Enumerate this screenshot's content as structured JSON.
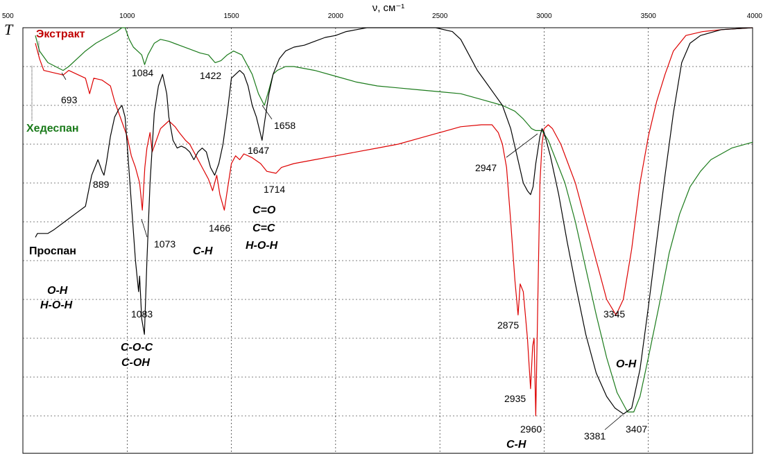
{
  "chart_data": {
    "type": "line",
    "xlabel": "ν, см⁻¹",
    "ylabel": "T",
    "xlim": [
      500,
      4000
    ],
    "x_ticks": [
      "500",
      "1000",
      "1500",
      "2000",
      "2500",
      "3000",
      "3500",
      "4000"
    ],
    "grid": true,
    "series": [
      {
        "name": "Экстракт",
        "color": "#dd0000",
        "points": [
          [
            560,
            0.04
          ],
          [
            580,
            0.08
          ],
          [
            600,
            0.11
          ],
          [
            640,
            0.115
          ],
          [
            680,
            0.12
          ],
          [
            693,
            0.122
          ],
          [
            720,
            0.11
          ],
          [
            760,
            0.12
          ],
          [
            800,
            0.13
          ],
          [
            820,
            0.17
          ],
          [
            840,
            0.13
          ],
          [
            880,
            0.135
          ],
          [
            920,
            0.15
          ],
          [
            940,
            0.19
          ],
          [
            960,
            0.22
          ],
          [
            980,
            0.25
          ],
          [
            1000,
            0.28
          ],
          [
            1020,
            0.33
          ],
          [
            1040,
            0.36
          ],
          [
            1060,
            0.4
          ],
          [
            1073,
            0.47
          ],
          [
            1085,
            0.36
          ],
          [
            1095,
            0.31
          ],
          [
            1110,
            0.27
          ],
          [
            1120,
            0.32
          ],
          [
            1140,
            0.29
          ],
          [
            1160,
            0.26
          ],
          [
            1180,
            0.25
          ],
          [
            1200,
            0.24
          ],
          [
            1230,
            0.255
          ],
          [
            1250,
            0.27
          ],
          [
            1280,
            0.29
          ],
          [
            1300,
            0.3
          ],
          [
            1330,
            0.33
          ],
          [
            1360,
            0.36
          ],
          [
            1390,
            0.39
          ],
          [
            1410,
            0.42
          ],
          [
            1430,
            0.38
          ],
          [
            1445,
            0.43
          ],
          [
            1466,
            0.47
          ],
          [
            1480,
            0.42
          ],
          [
            1500,
            0.35
          ],
          [
            1520,
            0.33
          ],
          [
            1540,
            0.34
          ],
          [
            1560,
            0.325
          ],
          [
            1600,
            0.335
          ],
          [
            1640,
            0.35
          ],
          [
            1670,
            0.37
          ],
          [
            1714,
            0.375
          ],
          [
            1740,
            0.36
          ],
          [
            1800,
            0.35
          ],
          [
            1900,
            0.34
          ],
          [
            2000,
            0.33
          ],
          [
            2100,
            0.32
          ],
          [
            2200,
            0.31
          ],
          [
            2300,
            0.3
          ],
          [
            2400,
            0.285
          ],
          [
            2500,
            0.27
          ],
          [
            2600,
            0.255
          ],
          [
            2700,
            0.25
          ],
          [
            2750,
            0.25
          ],
          [
            2780,
            0.27
          ],
          [
            2800,
            0.3
          ],
          [
            2820,
            0.36
          ],
          [
            2840,
            0.5
          ],
          [
            2860,
            0.65
          ],
          [
            2875,
            0.74
          ],
          [
            2885,
            0.66
          ],
          [
            2900,
            0.68
          ],
          [
            2920,
            0.8
          ],
          [
            2935,
            0.93
          ],
          [
            2945,
            0.82
          ],
          [
            2952,
            0.8
          ],
          [
            2960,
            1.0
          ],
          [
            2970,
            0.7
          ],
          [
            2980,
            0.4
          ],
          [
            2990,
            0.3
          ],
          [
            3000,
            0.26
          ],
          [
            3020,
            0.25
          ],
          [
            3040,
            0.26
          ],
          [
            3080,
            0.3
          ],
          [
            3150,
            0.4
          ],
          [
            3250,
            0.6
          ],
          [
            3300,
            0.7
          ],
          [
            3345,
            0.74
          ],
          [
            3380,
            0.7
          ],
          [
            3420,
            0.57
          ],
          [
            3460,
            0.4
          ],
          [
            3500,
            0.28
          ],
          [
            3540,
            0.19
          ],
          [
            3580,
            0.12
          ],
          [
            3620,
            0.06
          ],
          [
            3680,
            0.02
          ],
          [
            3760,
            0.01
          ],
          [
            3850,
            0.005
          ],
          [
            4000,
            0.0
          ]
        ]
      },
      {
        "name": "Хедеспан",
        "color": "#1a7a1a",
        "points": [
          [
            560,
            0.02
          ],
          [
            580,
            0.06
          ],
          [
            620,
            0.09
          ],
          [
            693,
            0.11
          ],
          [
            720,
            0.1
          ],
          [
            760,
            0.08
          ],
          [
            800,
            0.06
          ],
          [
            850,
            0.04
          ],
          [
            900,
            0.025
          ],
          [
            950,
            0.01
          ],
          [
            975,
            0.0
          ],
          [
            990,
            0.0
          ],
          [
            1010,
            0.03
          ],
          [
            1030,
            0.05
          ],
          [
            1050,
            0.06
          ],
          [
            1070,
            0.07
          ],
          [
            1084,
            0.095
          ],
          [
            1100,
            0.07
          ],
          [
            1130,
            0.04
          ],
          [
            1160,
            0.03
          ],
          [
            1200,
            0.035
          ],
          [
            1250,
            0.045
          ],
          [
            1300,
            0.055
          ],
          [
            1350,
            0.065
          ],
          [
            1390,
            0.07
          ],
          [
            1422,
            0.09
          ],
          [
            1450,
            0.085
          ],
          [
            1480,
            0.07
          ],
          [
            1510,
            0.06
          ],
          [
            1550,
            0.07
          ],
          [
            1600,
            0.12
          ],
          [
            1630,
            0.17
          ],
          [
            1658,
            0.2
          ],
          [
            1680,
            0.16
          ],
          [
            1700,
            0.12
          ],
          [
            1720,
            0.11
          ],
          [
            1760,
            0.1
          ],
          [
            1800,
            0.1
          ],
          [
            1900,
            0.11
          ],
          [
            2000,
            0.125
          ],
          [
            2100,
            0.14
          ],
          [
            2200,
            0.15
          ],
          [
            2300,
            0.155
          ],
          [
            2400,
            0.16
          ],
          [
            2500,
            0.165
          ],
          [
            2600,
            0.17
          ],
          [
            2700,
            0.185
          ],
          [
            2800,
            0.2
          ],
          [
            2860,
            0.215
          ],
          [
            2900,
            0.235
          ],
          [
            2940,
            0.26
          ],
          [
            2960,
            0.265
          ],
          [
            2990,
            0.265
          ],
          [
            3020,
            0.29
          ],
          [
            3100,
            0.4
          ],
          [
            3150,
            0.5
          ],
          [
            3200,
            0.62
          ],
          [
            3250,
            0.74
          ],
          [
            3300,
            0.85
          ],
          [
            3350,
            0.94
          ],
          [
            3400,
            0.99
          ],
          [
            3430,
            0.99
          ],
          [
            3460,
            0.95
          ],
          [
            3500,
            0.85
          ],
          [
            3550,
            0.72
          ],
          [
            3600,
            0.58
          ],
          [
            3650,
            0.48
          ],
          [
            3700,
            0.41
          ],
          [
            3750,
            0.37
          ],
          [
            3800,
            0.34
          ],
          [
            3900,
            0.31
          ],
          [
            4000,
            0.295
          ]
        ]
      },
      {
        "name": "Проспан",
        "color": "#000000",
        "points": [
          [
            560,
            0.54
          ],
          [
            570,
            0.53
          ],
          [
            590,
            0.53
          ],
          [
            620,
            0.53
          ],
          [
            650,
            0.52
          ],
          [
            700,
            0.5
          ],
          [
            750,
            0.48
          ],
          [
            800,
            0.46
          ],
          [
            830,
            0.38
          ],
          [
            860,
            0.34
          ],
          [
            880,
            0.37
          ],
          [
            889,
            0.38
          ],
          [
            900,
            0.35
          ],
          [
            920,
            0.28
          ],
          [
            940,
            0.23
          ],
          [
            960,
            0.21
          ],
          [
            975,
            0.2
          ],
          [
            990,
            0.23
          ],
          [
            1000,
            0.3
          ],
          [
            1020,
            0.45
          ],
          [
            1040,
            0.6
          ],
          [
            1055,
            0.68
          ],
          [
            1060,
            0.64
          ],
          [
            1070,
            0.75
          ],
          [
            1083,
            0.79
          ],
          [
            1095,
            0.6
          ],
          [
            1110,
            0.4
          ],
          [
            1130,
            0.22
          ],
          [
            1150,
            0.15
          ],
          [
            1170,
            0.12
          ],
          [
            1190,
            0.17
          ],
          [
            1200,
            0.23
          ],
          [
            1220,
            0.29
          ],
          [
            1240,
            0.31
          ],
          [
            1260,
            0.305
          ],
          [
            1280,
            0.31
          ],
          [
            1300,
            0.32
          ],
          [
            1320,
            0.34
          ],
          [
            1340,
            0.32
          ],
          [
            1360,
            0.31
          ],
          [
            1380,
            0.32
          ],
          [
            1400,
            0.36
          ],
          [
            1420,
            0.38
          ],
          [
            1440,
            0.35
          ],
          [
            1460,
            0.3
          ],
          [
            1480,
            0.22
          ],
          [
            1500,
            0.13
          ],
          [
            1520,
            0.12
          ],
          [
            1540,
            0.11
          ],
          [
            1560,
            0.12
          ],
          [
            1580,
            0.15
          ],
          [
            1600,
            0.2
          ],
          [
            1620,
            0.23
          ],
          [
            1647,
            0.29
          ],
          [
            1660,
            0.24
          ],
          [
            1680,
            0.17
          ],
          [
            1700,
            0.12
          ],
          [
            1730,
            0.08
          ],
          [
            1760,
            0.06
          ],
          [
            1800,
            0.05
          ],
          [
            1850,
            0.045
          ],
          [
            1900,
            0.035
          ],
          [
            1950,
            0.025
          ],
          [
            2000,
            0.02
          ],
          [
            2050,
            0.01
          ],
          [
            2100,
            0.005
          ],
          [
            2150,
            0.0
          ],
          [
            2200,
            0.0
          ],
          [
            2300,
            0.0
          ],
          [
            2400,
            0.0
          ],
          [
            2480,
            0.0
          ],
          [
            2560,
            0.01
          ],
          [
            2600,
            0.03
          ],
          [
            2640,
            0.07
          ],
          [
            2680,
            0.11
          ],
          [
            2720,
            0.14
          ],
          [
            2760,
            0.17
          ],
          [
            2800,
            0.2
          ],
          [
            2840,
            0.26
          ],
          [
            2870,
            0.33
          ],
          [
            2900,
            0.4
          ],
          [
            2920,
            0.42
          ],
          [
            2935,
            0.43
          ],
          [
            2947,
            0.41
          ],
          [
            2960,
            0.35
          ],
          [
            2980,
            0.28
          ],
          [
            2990,
            0.26
          ],
          [
            3000,
            0.27
          ],
          [
            3030,
            0.33
          ],
          [
            3070,
            0.43
          ],
          [
            3110,
            0.55
          ],
          [
            3150,
            0.66
          ],
          [
            3200,
            0.79
          ],
          [
            3250,
            0.89
          ],
          [
            3300,
            0.95
          ],
          [
            3340,
            0.98
          ],
          [
            3381,
            0.995
          ],
          [
            3420,
            0.98
          ],
          [
            3460,
            0.88
          ],
          [
            3500,
            0.72
          ],
          [
            3540,
            0.55
          ],
          [
            3580,
            0.38
          ],
          [
            3620,
            0.22
          ],
          [
            3660,
            0.09
          ],
          [
            3700,
            0.04
          ],
          [
            3750,
            0.02
          ],
          [
            3850,
            0.005
          ],
          [
            4000,
            0.0
          ]
        ]
      }
    ],
    "peak_labels": [
      "693",
      "1084",
      "1422",
      "1658",
      "1647",
      "1714",
      "889",
      "1073",
      "1466",
      "1083",
      "2947",
      "2875",
      "2935",
      "2960",
      "3345",
      "3381",
      "3407"
    ],
    "group_labels": [
      "O-H",
      "H-O-H",
      "C-O-C",
      "C-OH",
      "C-H",
      "C=O",
      "C=C",
      "H-O-H",
      "C-H",
      "O-H"
    ]
  }
}
